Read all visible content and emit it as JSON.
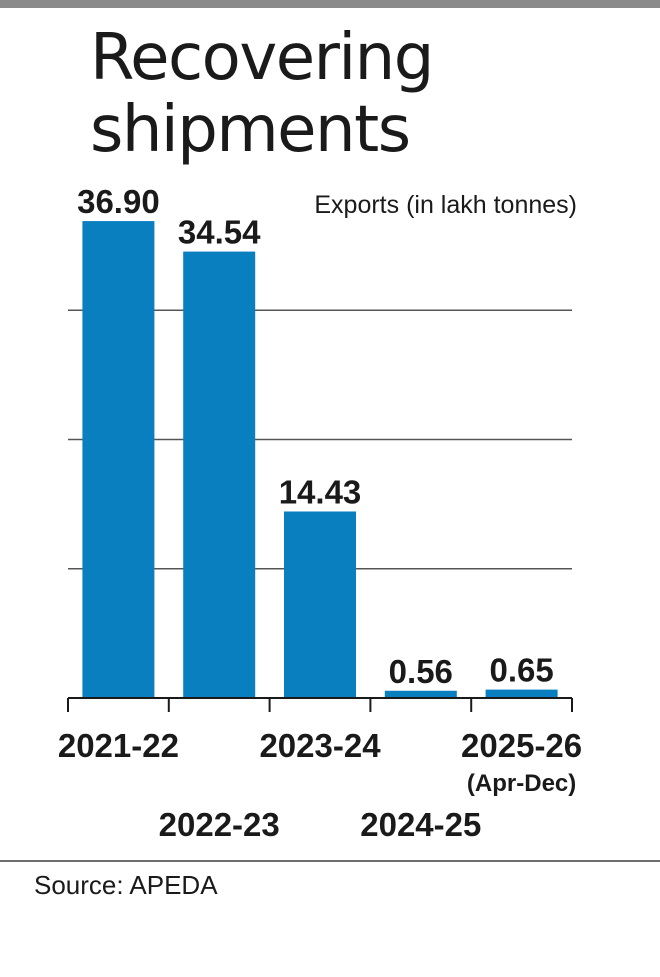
{
  "title_line1": "Recovering",
  "title_line2": "shipments",
  "source": "Source: APEDA",
  "chart_data": {
    "type": "bar",
    "title": "Recovering shipments",
    "unit_label": "Exports (in lakh tonnes)",
    "categories": [
      "2021-22",
      "2022-23",
      "2023-24",
      "2024-25",
      "2025-26"
    ],
    "category_notes": [
      "",
      "",
      "",
      "",
      "(Apr-Dec)"
    ],
    "values": [
      36.9,
      34.54,
      14.43,
      0.56,
      0.65
    ],
    "value_labels": [
      "36.90",
      "34.54",
      "14.43",
      "0.56",
      "0.65"
    ],
    "ylim": [
      0,
      40
    ],
    "gridlines": [
      10,
      20,
      30,
      40
    ],
    "grid": true,
    "bar_color": "#0a7fc0",
    "legend": "none"
  }
}
